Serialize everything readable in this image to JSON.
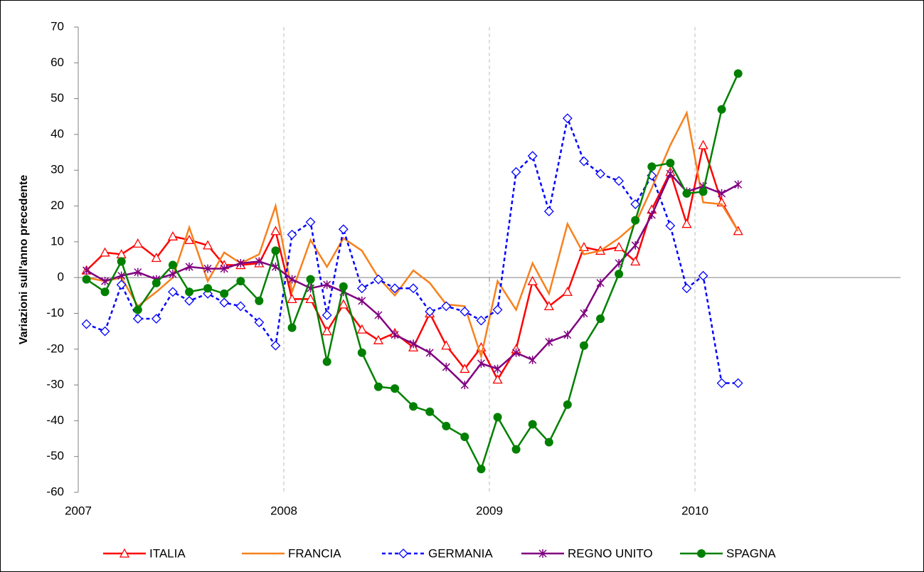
{
  "chart_data": {
    "type": "line",
    "ylabel": "Variazioni sull'anno precedente",
    "x": [
      2007.04,
      2007.13,
      2007.21,
      2007.29,
      2007.38,
      2007.46,
      2007.54,
      2007.63,
      2007.71,
      2007.79,
      2007.88,
      2007.96,
      2008.04,
      2008.13,
      2008.21,
      2008.29,
      2008.38,
      2008.46,
      2008.54,
      2008.63,
      2008.71,
      2008.79,
      2008.88,
      2008.96,
      2009.04,
      2009.13,
      2009.21,
      2009.29,
      2009.38,
      2009.46,
      2009.54,
      2009.63,
      2009.71,
      2009.79,
      2009.88,
      2009.96,
      2010.04,
      2010.13,
      2010.21
    ],
    "xlim": [
      2007,
      2011
    ],
    "xticks": [
      2007,
      2008,
      2009,
      2010
    ],
    "ylim": [
      -60,
      70
    ],
    "yticks": [
      -60,
      -50,
      -40,
      -30,
      -20,
      -10,
      0,
      10,
      20,
      30,
      40,
      50,
      60,
      70
    ],
    "grid": "x",
    "legend": "bottom",
    "series": [
      {
        "name": "ITALIA",
        "color": "#ff0000",
        "marker": "triangle",
        "dashed": false,
        "values": [
          2,
          7,
          6.5,
          9.5,
          5.5,
          11.5,
          10.5,
          9,
          3.5,
          3.5,
          4,
          13,
          -6,
          -6,
          -15,
          -7.5,
          -14.5,
          -17.5,
          -15.5,
          -19.5,
          -10,
          -19,
          -25.5,
          -19.5,
          -28.5,
          -20,
          -1,
          -8,
          -4,
          8.5,
          7.5,
          8.5,
          4.5,
          19,
          29.5,
          15,
          37,
          21,
          13
        ]
      },
      {
        "name": "FRANCIA",
        "color": "#f7811d",
        "marker": "none",
        "dashed": false,
        "values": [
          0,
          -1,
          0,
          -8,
          -4,
          0,
          14,
          -1,
          7,
          4,
          6.5,
          20,
          -4,
          10.5,
          3,
          11,
          7.5,
          0,
          -5,
          2,
          -1.5,
          -7.5,
          -8,
          -22,
          -1,
          -9,
          4,
          -4.5,
          15,
          6.5,
          7.5,
          11,
          15,
          25,
          37,
          46,
          21,
          20.5,
          13
        ]
      },
      {
        "name": "GERMANIA",
        "color": "#0000ff",
        "marker": "diamond",
        "dashed": true,
        "values": [
          -13,
          -15,
          -2,
          -11.5,
          -11.5,
          -4,
          -6.5,
          -4.5,
          -7,
          -8,
          -12.5,
          -19,
          12,
          15.5,
          -10.5,
          13.5,
          -3,
          -0.5,
          -3,
          -3,
          -9.5,
          -8,
          -9.5,
          -12,
          -9,
          29.5,
          34,
          18.5,
          44.5,
          32.5,
          29,
          27,
          20.5,
          28.5,
          14.5,
          -3,
          0.5,
          -29.5,
          -29.5
        ]
      },
      {
        "name": "REGNO UNITO",
        "color": "#800080",
        "marker": "star",
        "dashed": false,
        "values": [
          2,
          -1,
          0.5,
          1.5,
          -0.5,
          1,
          3,
          2.5,
          2.5,
          4,
          4.5,
          3,
          -0.5,
          -3,
          -2,
          -4,
          -6.5,
          -10.5,
          -16,
          -18.5,
          -21,
          -25,
          -30,
          -24,
          -25.5,
          -21,
          -23,
          -18,
          -16,
          -10,
          -1.5,
          4,
          9,
          17.5,
          29,
          24,
          25.5,
          23.5,
          26
        ]
      },
      {
        "name": "SPAGNA",
        "color": "#008000",
        "marker": "circle",
        "dashed": false,
        "values": [
          -0.5,
          -4,
          4.5,
          -9,
          -1.5,
          3.5,
          -4,
          -3,
          -4.5,
          -1,
          -6.5,
          7.5,
          -14,
          -0.5,
          -23.5,
          -2.5,
          -21,
          -30.5,
          -31,
          -36,
          -37.5,
          -41.5,
          -44.5,
          -53.5,
          -39,
          -48,
          -41,
          -46,
          -35.5,
          -19,
          -11.5,
          1,
          16,
          31,
          32,
          23.5,
          24,
          47,
          57
        ]
      }
    ]
  }
}
